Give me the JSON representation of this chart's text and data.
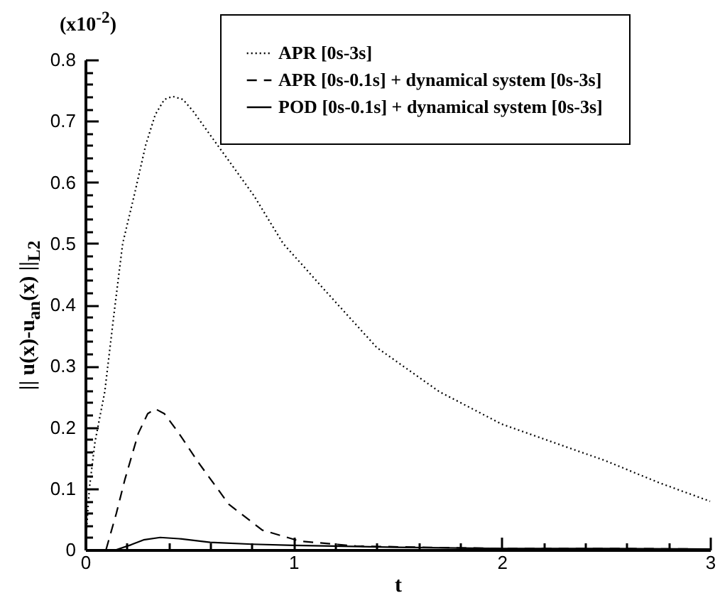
{
  "chart_data": {
    "type": "line",
    "xlabel": "t",
    "ylabel": "|| u(x)-u$_{an}$(x) ||$_{L2}$",
    "annotations": [
      "(x10$^{-2}$)"
    ],
    "xlim": [
      0,
      3
    ],
    "ylim": [
      0,
      0.8
    ],
    "xticks": [
      0,
      {
        "value": 0.2,
        "label": null
      },
      {
        "value": 0.4,
        "label": null
      },
      {
        "value": 0.6,
        "label": null
      },
      {
        "value": 0.8,
        "label": null
      },
      1,
      {
        "value": 1.2,
        "label": null
      },
      {
        "value": 1.4,
        "label": null
      },
      {
        "value": 1.6,
        "label": null
      },
      {
        "value": 1.8,
        "label": null
      },
      2,
      {
        "value": 2.2,
        "label": null
      },
      {
        "value": 2.4,
        "label": null
      },
      {
        "value": 2.6,
        "label": null
      },
      {
        "value": 2.8,
        "label": null
      },
      3
    ],
    "yticks": [
      0,
      {
        "value": 0.02,
        "label": null
      },
      {
        "value": 0.04,
        "label": null
      },
      {
        "value": 0.06,
        "label": null
      },
      {
        "value": 0.08,
        "label": null
      },
      0.1,
      {
        "value": 0.12,
        "label": null
      },
      {
        "value": 0.14,
        "label": null
      },
      {
        "value": 0.16,
        "label": null
      },
      {
        "value": 0.18,
        "label": null
      },
      0.2,
      {
        "value": 0.22,
        "label": null
      },
      {
        "value": 0.24,
        "label": null
      },
      {
        "value": 0.26,
        "label": null
      },
      {
        "value": 0.28,
        "label": null
      },
      0.3,
      {
        "value": 0.32,
        "label": null
      },
      {
        "value": 0.34,
        "label": null
      },
      {
        "value": 0.36,
        "label": null
      },
      {
        "value": 0.38,
        "label": null
      },
      0.4,
      {
        "value": 0.42,
        "label": null
      },
      {
        "value": 0.44,
        "label": null
      },
      {
        "value": 0.46,
        "label": null
      },
      {
        "value": 0.48,
        "label": null
      },
      0.5,
      {
        "value": 0.52,
        "label": null
      },
      {
        "value": 0.54,
        "label": null
      },
      {
        "value": 0.56,
        "label": null
      },
      {
        "value": 0.58,
        "label": null
      },
      0.6,
      {
        "value": 0.62,
        "label": null
      },
      {
        "value": 0.64,
        "label": null
      },
      {
        "value": 0.66,
        "label": null
      },
      {
        "value": 0.68,
        "label": null
      },
      0.7,
      {
        "value": 0.72,
        "label": null
      },
      {
        "value": 0.74,
        "label": null
      },
      {
        "value": 0.76,
        "label": null
      },
      {
        "value": 0.78,
        "label": null
      },
      0.8
    ],
    "grid": false,
    "legend": "top right",
    "marker": "none",
    "series": [
      {
        "name": "APR [0s-3s]",
        "color": "#000000",
        "line_style": "dotted",
        "x": [
          0,
          0.01,
          0.02,
          0.047,
          0.094,
          0.14,
          0.18,
          0.235,
          0.29,
          0.336,
          0.38,
          0.42,
          0.47,
          0.52,
          0.6,
          0.7,
          0.81,
          0.95,
          1.16,
          1.4,
          1.7,
          2.0,
          2.25,
          2.5,
          2.75,
          3
        ],
        "values": [
          0,
          0.05,
          0.1,
          0.176,
          0.258,
          0.39,
          0.5,
          0.578,
          0.66,
          0.71,
          0.735,
          0.74,
          0.735,
          0.715,
          0.677,
          0.63,
          0.578,
          0.5,
          0.42,
          0.33,
          0.258,
          0.205,
          0.175,
          0.145,
          0.11,
          0.079
        ]
      },
      {
        "name": "APR [0s-0.1s] + dynamical system [0s-3s]",
        "color": "#000000",
        "line_style": "dashed",
        "x": [
          0.1,
          0.15,
          0.19,
          0.255,
          0.3,
          0.336,
          0.38,
          0.45,
          0.54,
          0.69,
          0.85,
          1.03,
          1.3,
          1.6,
          2,
          2.5,
          3
        ],
        "values": [
          0,
          0.06,
          0.114,
          0.19,
          0.222,
          0.23,
          0.222,
          0.19,
          0.144,
          0.074,
          0.032,
          0.014,
          0.006,
          0.004,
          0.002,
          0.002,
          0.001
        ]
      },
      {
        "name": "POD [0s-0.1s] + dynamical system [0s-3s]",
        "color": "#000000",
        "line_style": "solid",
        "x": [
          0,
          0.15,
          0.22,
          0.28,
          0.36,
          0.45,
          0.6,
          0.8,
          1,
          1.5,
          2,
          2.5,
          3
        ],
        "values": [
          0,
          0,
          0.008,
          0.016,
          0.02,
          0.018,
          0.012,
          0.009,
          0.007,
          0.004,
          0.002,
          0.002,
          0.001
        ]
      }
    ]
  }
}
